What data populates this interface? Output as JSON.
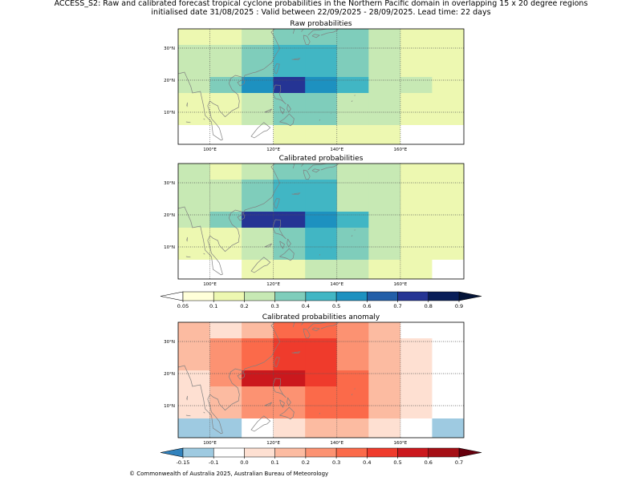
{
  "title": {
    "line1": "ACCESS_S2: Raw and calibrated forecast tropical cyclone probabilities in the Northern Pacific domain in overlapping 15 x 20 degree regions",
    "line2": "initialised date 31/08/2025 :  Valid between 22/09/2025 - 28/09/2025. Lead time: 22 days"
  },
  "copyright": "© Commonwealth of Australia 2025, Australian Bureau of Meteorology",
  "map_extent": {
    "lon": [
      90,
      180
    ],
    "lat": [
      0,
      36
    ]
  },
  "lon_ticks": [
    {
      "lon": 100,
      "label": "100°E"
    },
    {
      "lon": 120,
      "label": "120°E"
    },
    {
      "lon": 140,
      "label": "140°E"
    },
    {
      "lon": 160,
      "label": "160°E"
    }
  ],
  "lat_ticks": [
    {
      "lat": 10,
      "label": "10°N"
    },
    {
      "lat": 20,
      "label": "20°N"
    },
    {
      "lat": 30,
      "label": "30°N"
    }
  ],
  "grid": {
    "lon_edges": [
      90,
      100,
      110,
      120,
      130,
      140,
      150,
      160,
      170,
      180
    ],
    "lat_edges": [
      36,
      31,
      26,
      21,
      16,
      11,
      6,
      0
    ]
  },
  "panels": [
    {
      "key": "raw",
      "title": "Raw probabilities",
      "scale": "prob",
      "values": [
        [
          0.15,
          0.15,
          0.2,
          0.35,
          0.35,
          0.3,
          0.2,
          0.15,
          0.15
        ],
        [
          0.2,
          0.25,
          0.3,
          0.4,
          0.4,
          0.3,
          0.25,
          0.15,
          0.15
        ],
        [
          0.2,
          0.25,
          0.3,
          0.4,
          0.4,
          0.3,
          0.25,
          0.15,
          0.15
        ],
        [
          0.25,
          0.3,
          0.5,
          0.75,
          0.5,
          0.4,
          0.25,
          0.2,
          0.15
        ],
        [
          0.15,
          0.15,
          0.25,
          0.3,
          0.3,
          0.25,
          0.2,
          0.15,
          0.1
        ],
        [
          0.15,
          0.15,
          0.25,
          0.3,
          0.3,
          0.25,
          0.2,
          0.15,
          0.1
        ],
        [
          0.0,
          0.0,
          0.0,
          0.1,
          0.15,
          0.15,
          0.1,
          0.0,
          0.0
        ]
      ]
    },
    {
      "key": "calibrated",
      "title": "Calibrated probabilities",
      "scale": "prob",
      "values": [
        [
          0.2,
          0.15,
          0.2,
          0.35,
          0.35,
          0.25,
          0.2,
          0.1,
          0.1
        ],
        [
          0.2,
          0.25,
          0.3,
          0.4,
          0.4,
          0.25,
          0.2,
          0.1,
          0.1
        ],
        [
          0.2,
          0.25,
          0.3,
          0.4,
          0.4,
          0.25,
          0.2,
          0.1,
          0.1
        ],
        [
          0.2,
          0.35,
          0.75,
          0.75,
          0.5,
          0.4,
          0.2,
          0.1,
          0.1
        ],
        [
          0.15,
          0.15,
          0.25,
          0.3,
          0.4,
          0.35,
          0.2,
          0.1,
          0.1
        ],
        [
          0.15,
          0.15,
          0.25,
          0.3,
          0.4,
          0.35,
          0.2,
          0.1,
          0.1
        ],
        [
          0.0,
          0.0,
          0.1,
          0.15,
          0.2,
          0.2,
          0.15,
          0.1,
          0.0
        ]
      ]
    },
    {
      "key": "anomaly",
      "title": "Calibrated probabilities anomaly",
      "scale": "anom",
      "values": [
        [
          0.15,
          0.05,
          0.15,
          0.3,
          0.3,
          0.2,
          0.15,
          -0.1,
          -0.1
        ],
        [
          0.15,
          0.2,
          0.3,
          0.4,
          0.4,
          0.2,
          0.15,
          0.0,
          -0.1
        ],
        [
          0.15,
          0.2,
          0.3,
          0.4,
          0.4,
          0.2,
          0.15,
          0.0,
          -0.1
        ],
        [
          0.05,
          0.25,
          0.55,
          0.55,
          0.45,
          0.3,
          0.15,
          0.0,
          -0.1
        ],
        [
          0.05,
          0.1,
          0.2,
          0.25,
          0.35,
          0.3,
          0.15,
          0.0,
          -0.1
        ],
        [
          0.05,
          0.1,
          0.2,
          0.25,
          0.35,
          0.3,
          0.15,
          0.0,
          -0.1
        ],
        [
          -0.15,
          -0.15,
          -0.1,
          0.05,
          0.1,
          0.1,
          0.05,
          -0.1,
          -0.15
        ]
      ]
    }
  ],
  "colorbars": {
    "prob": {
      "ticks": [
        "0.05",
        "0.1",
        "0.2",
        "0.3",
        "0.4",
        "0.5",
        "0.6",
        "0.7",
        "0.8",
        "0.9"
      ],
      "bounds": [
        0.05,
        0.1,
        0.2,
        0.3,
        0.4,
        0.5,
        0.6,
        0.7,
        0.8,
        0.9
      ],
      "colors": [
        "#ffffd9",
        "#edf8b1",
        "#c7e9b4",
        "#7fcdbb",
        "#41b6c4",
        "#1d91c0",
        "#225ea8",
        "#253494",
        "#081d58"
      ],
      "under": "#ffffff",
      "over": "#041438"
    },
    "anom": {
      "ticks": [
        "-0.15",
        "-0.1",
        "0.0",
        "0.1",
        "0.2",
        "0.3",
        "0.4",
        "0.5",
        "0.6",
        "0.7"
      ],
      "bounds": [
        -0.15,
        -0.1,
        0.0,
        0.1,
        0.2,
        0.3,
        0.4,
        0.5,
        0.6,
        0.7
      ],
      "colors": [
        "#9ecae1",
        "#ffffff",
        "#fee0d2",
        "#fcbba1",
        "#fc9272",
        "#fb6a4a",
        "#ef3b2c",
        "#cb181d",
        "#a50f15"
      ],
      "under": "#3182bd",
      "over": "#67000d"
    }
  }
}
